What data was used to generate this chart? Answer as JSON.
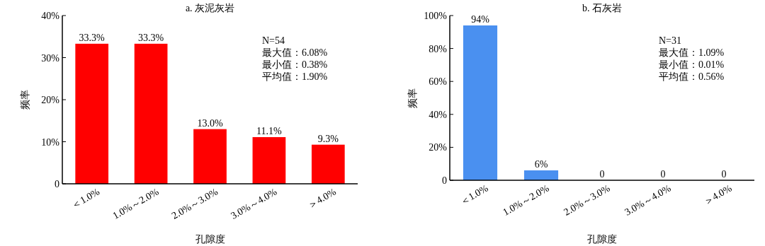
{
  "chart_data": [
    {
      "type": "bar",
      "title": "a. 灰泥灰岩",
      "xlabel": "孔隙度",
      "ylabel": "频率",
      "categories": [
        "＜1.0%",
        "1.0%～2.0%",
        "2.0%～3.0%",
        "3.0%～4.0%",
        "＞4.0%"
      ],
      "series": [
        {
          "color": "#ff0000",
          "values": [
            33.3,
            33.3,
            13.0,
            11.1,
            9.3
          ],
          "value_labels": [
            "33.3%",
            "33.3%",
            "13.0%",
            "11.1%",
            "9.3%"
          ]
        }
      ],
      "ylim": [
        0,
        40
      ],
      "yticks": [
        {
          "value": 0,
          "label": "0"
        },
        {
          "value": 10,
          "label": "10%"
        },
        {
          "value": 20,
          "label": "20%"
        },
        {
          "value": 30,
          "label": "30%"
        },
        {
          "value": 40,
          "label": "40%"
        }
      ],
      "annotations": [
        "N=54",
        "最大值：6.08%",
        "最小值：0.38%",
        "平均值：1.90%"
      ]
    },
    {
      "type": "bar",
      "title": "b. 石灰岩",
      "xlabel": "孔隙度",
      "ylabel": "频率",
      "categories": [
        "＜1.0%",
        "1.0%～2.0%",
        "2.0%～3.0%",
        "3.0%～4.0%",
        "＞4.0%"
      ],
      "series": [
        {
          "color": "#4a90f0",
          "values": [
            94,
            6,
            0,
            0,
            0
          ],
          "value_labels": [
            "94%",
            "6%",
            "0",
            "0",
            "0"
          ]
        }
      ],
      "ylim": [
        0,
        100
      ],
      "yticks": [
        {
          "value": 0,
          "label": "0"
        },
        {
          "value": 20,
          "label": "20%"
        },
        {
          "value": 40,
          "label": "40%"
        },
        {
          "value": 60,
          "label": "60%"
        },
        {
          "value": 80,
          "label": "80%"
        },
        {
          "value": 100,
          "label": "100%"
        }
      ],
      "annotations": [
        "N=31",
        "最大值：1.09%",
        "最小值：0.01%",
        "平均值：0.56%"
      ]
    }
  ]
}
